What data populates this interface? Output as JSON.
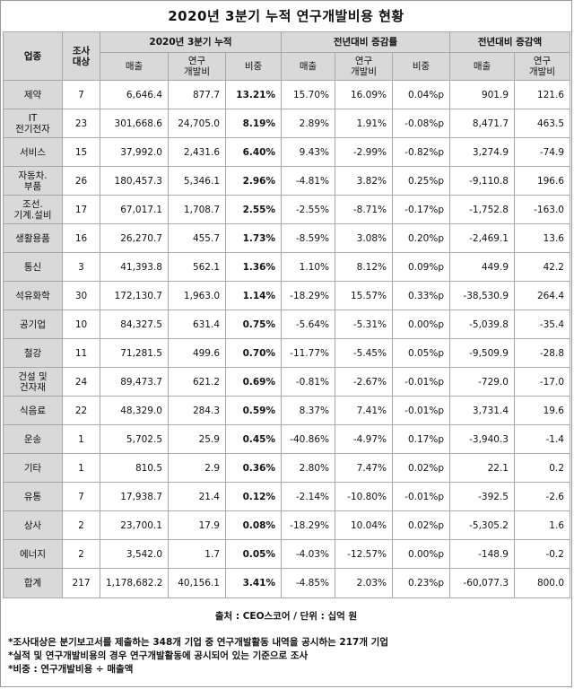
{
  "title": "2020년 3분기 누적 연구개발비용 현황",
  "header": {
    "industry": "업종",
    "count": [
      "조사",
      "대상"
    ],
    "group_cumulative": "2020년 3분기 누적",
    "group_rate": "전년대비 증감률",
    "group_amount": "전년대비 증감액",
    "sales": "매출",
    "rnd": [
      "연구",
      "개발비"
    ],
    "ratio": "비중"
  },
  "rows": [
    {
      "industry": [
        "제약"
      ],
      "count": "7",
      "sales": "6,646.4",
      "rnd": "877.7",
      "ratio": "13.21%",
      "rate_sales": "15.70%",
      "rate_rnd": "16.09%",
      "rate_ratio": "0.04%p",
      "amt_sales": "901.9",
      "amt_rnd": "121.6"
    },
    {
      "industry": [
        "IT",
        "전기전자"
      ],
      "count": "23",
      "sales": "301,668.6",
      "rnd": "24,705.0",
      "ratio": "8.19%",
      "rate_sales": "2.89%",
      "rate_rnd": "1.91%",
      "rate_ratio": "-0.08%p",
      "amt_sales": "8,471.7",
      "amt_rnd": "463.5"
    },
    {
      "industry": [
        "서비스"
      ],
      "count": "15",
      "sales": "37,992.0",
      "rnd": "2,431.6",
      "ratio": "6.40%",
      "rate_sales": "9.43%",
      "rate_rnd": "-2.99%",
      "rate_ratio": "-0.82%p",
      "amt_sales": "3,274.9",
      "amt_rnd": "-74.9"
    },
    {
      "industry": [
        "자동차.",
        "부품"
      ],
      "count": "26",
      "sales": "180,457.3",
      "rnd": "5,346.1",
      "ratio": "2.96%",
      "rate_sales": "-4.81%",
      "rate_rnd": "3.82%",
      "rate_ratio": "0.25%p",
      "amt_sales": "-9,110.8",
      "amt_rnd": "196.6"
    },
    {
      "industry": [
        "조선.",
        "기계.설비"
      ],
      "count": "17",
      "sales": "67,017.1",
      "rnd": "1,708.7",
      "ratio": "2.55%",
      "rate_sales": "-2.55%",
      "rate_rnd": "-8.71%",
      "rate_ratio": "-0.17%p",
      "amt_sales": "-1,752.8",
      "amt_rnd": "-163.0"
    },
    {
      "industry": [
        "생활용품"
      ],
      "count": "16",
      "sales": "26,270.7",
      "rnd": "455.7",
      "ratio": "1.73%",
      "rate_sales": "-8.59%",
      "rate_rnd": "3.08%",
      "rate_ratio": "0.20%p",
      "amt_sales": "-2,469.1",
      "amt_rnd": "13.6"
    },
    {
      "industry": [
        "통신"
      ],
      "count": "3",
      "sales": "41,393.8",
      "rnd": "562.1",
      "ratio": "1.36%",
      "rate_sales": "1.10%",
      "rate_rnd": "8.12%",
      "rate_ratio": "0.09%p",
      "amt_sales": "449.9",
      "amt_rnd": "42.2"
    },
    {
      "industry": [
        "석유화학"
      ],
      "count": "30",
      "sales": "172,130.7",
      "rnd": "1,963.0",
      "ratio": "1.14%",
      "rate_sales": "-18.29%",
      "rate_rnd": "15.57%",
      "rate_ratio": "0.33%p",
      "amt_sales": "-38,530.9",
      "amt_rnd": "264.4"
    },
    {
      "industry": [
        "공기업"
      ],
      "count": "10",
      "sales": "84,327.5",
      "rnd": "631.4",
      "ratio": "0.75%",
      "rate_sales": "-5.64%",
      "rate_rnd": "-5.31%",
      "rate_ratio": "0.00%p",
      "amt_sales": "-5,039.8",
      "amt_rnd": "-35.4"
    },
    {
      "industry": [
        "철강"
      ],
      "count": "11",
      "sales": "71,281.5",
      "rnd": "499.6",
      "ratio": "0.70%",
      "rate_sales": "-11.77%",
      "rate_rnd": "-5.45%",
      "rate_ratio": "0.05%p",
      "amt_sales": "-9,509.9",
      "amt_rnd": "-28.8"
    },
    {
      "industry": [
        "건설 및",
        "건자재"
      ],
      "count": "24",
      "sales": "89,473.7",
      "rnd": "621.2",
      "ratio": "0.69%",
      "rate_sales": "-0.81%",
      "rate_rnd": "-2.67%",
      "rate_ratio": "-0.01%p",
      "amt_sales": "-729.0",
      "amt_rnd": "-17.0"
    },
    {
      "industry": [
        "식음료"
      ],
      "count": "22",
      "sales": "48,329.0",
      "rnd": "284.3",
      "ratio": "0.59%",
      "rate_sales": "8.37%",
      "rate_rnd": "7.41%",
      "rate_ratio": "-0.01%p",
      "amt_sales": "3,731.4",
      "amt_rnd": "19.6"
    },
    {
      "industry": [
        "운송"
      ],
      "count": "1",
      "sales": "5,702.5",
      "rnd": "25.9",
      "ratio": "0.45%",
      "rate_sales": "-40.86%",
      "rate_rnd": "-4.97%",
      "rate_ratio": "0.17%p",
      "amt_sales": "-3,940.3",
      "amt_rnd": "-1.4"
    },
    {
      "industry": [
        "기타"
      ],
      "count": "1",
      "sales": "810.5",
      "rnd": "2.9",
      "ratio": "0.36%",
      "rate_sales": "2.80%",
      "rate_rnd": "7.47%",
      "rate_ratio": "0.02%p",
      "amt_sales": "22.1",
      "amt_rnd": "0.2"
    },
    {
      "industry": [
        "유통"
      ],
      "count": "7",
      "sales": "17,938.7",
      "rnd": "21.4",
      "ratio": "0.12%",
      "rate_sales": "-2.14%",
      "rate_rnd": "-10.80%",
      "rate_ratio": "-0.01%p",
      "amt_sales": "-392.5",
      "amt_rnd": "-2.6"
    },
    {
      "industry": [
        "상사"
      ],
      "count": "2",
      "sales": "23,700.1",
      "rnd": "17.9",
      "ratio": "0.08%",
      "rate_sales": "-18.29%",
      "rate_rnd": "10.04%",
      "rate_ratio": "0.02%p",
      "amt_sales": "-5,305.2",
      "amt_rnd": "1.6"
    },
    {
      "industry": [
        "에너지"
      ],
      "count": "2",
      "sales": "3,542.0",
      "rnd": "1.7",
      "ratio": "0.05%",
      "rate_sales": "-4.03%",
      "rate_rnd": "-12.57%",
      "rate_ratio": "0.00%p",
      "amt_sales": "-148.9",
      "amt_rnd": "-0.2"
    }
  ],
  "total": {
    "industry": [
      "합계"
    ],
    "count": "217",
    "sales": "1,178,682.2",
    "rnd": "40,156.1",
    "ratio": "3.41%",
    "rate_sales": "-4.85%",
    "rate_rnd": "2.03%",
    "rate_ratio": "0.23%p",
    "amt_sales": "-60,077.3",
    "amt_rnd": "800.0"
  },
  "source": "출처 : CEO스코어 / 단위 : 십억 원",
  "notes": [
    "*조사대상은 분기보고서를 제출하는 348개 기업 중 연구개발활동 내역을 공시하는 217개 기업",
    "*실적 및 연구개발비용의 경우 연구개발활동에 공시되어 있는 기준으로 조사",
    "*비중 : 연구개발비용 ÷ 매출액"
  ]
}
